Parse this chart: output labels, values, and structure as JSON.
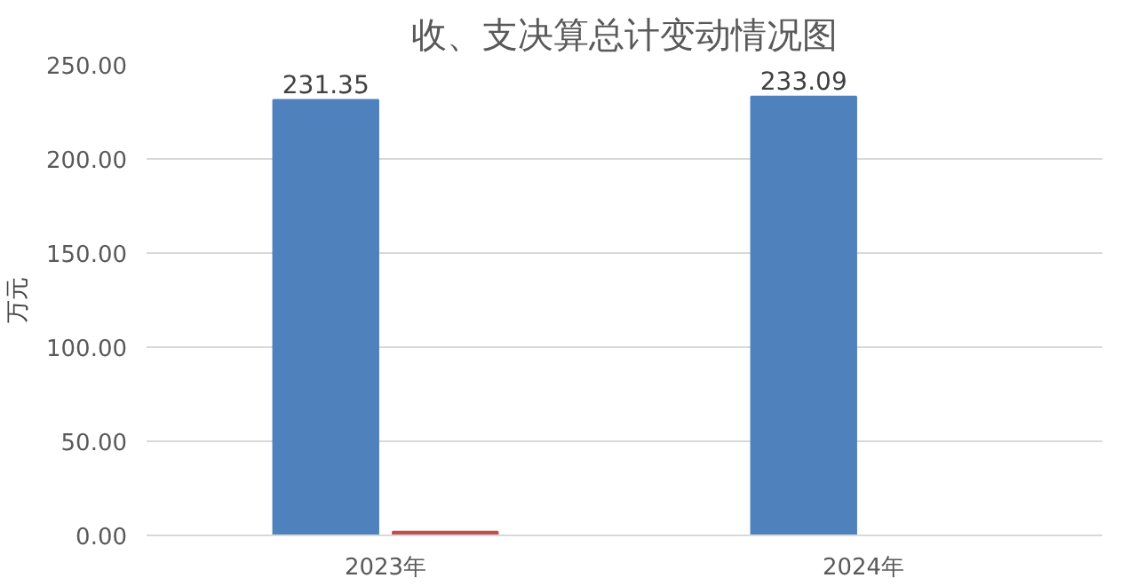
{
  "chart_data": {
    "type": "bar",
    "title": "收、支决算总计变动情况图",
    "ylabel": "万元",
    "categories": [
      "2023年",
      "2024年"
    ],
    "series": [
      {
        "color": "#4f81bd",
        "values": [
          231.35,
          233.09
        ],
        "value_labels": [
          "231.35",
          "233.09"
        ]
      },
      {
        "color": "#c0504d",
        "values": [
          2,
          0
        ]
      }
    ],
    "ylim": [
      0,
      250
    ],
    "yticks": [
      {
        "value": 0,
        "label": "0.00"
      },
      {
        "value": 50,
        "label": "50.00"
      },
      {
        "value": 100,
        "label": "100.00"
      },
      {
        "value": 150,
        "label": "150.00"
      },
      {
        "value": 200,
        "label": "200.00"
      },
      {
        "value": 250,
        "label": "250.00"
      }
    ],
    "grid": "y"
  }
}
